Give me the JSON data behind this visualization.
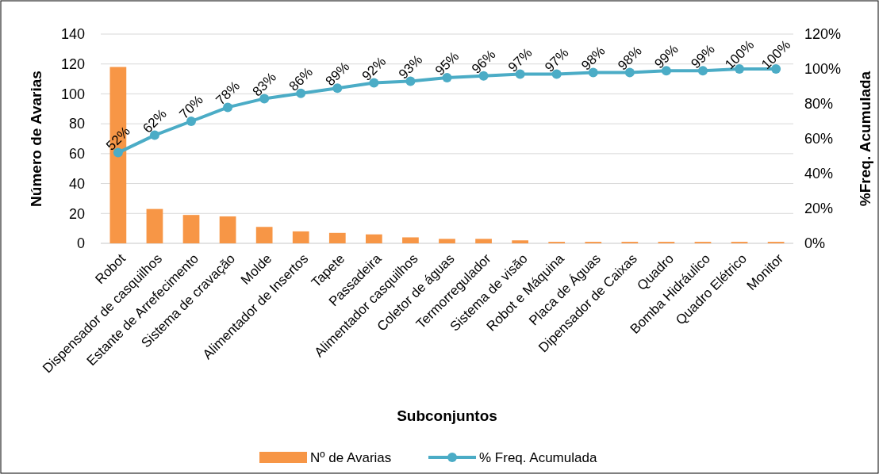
{
  "chart_data": {
    "type": "bar",
    "xlabel": "Subconjuntos",
    "ylabel": "Número de Avarias",
    "y2label": "%Freq. Acumulada",
    "categories": [
      "Robot",
      "Dispensador de casquilhos",
      "Estante de Arrefecimento",
      "Sistema de cravação",
      "Molde",
      "Alimentador de Insertos",
      "Tapete",
      "Passadeira",
      "Alimentador casquilhos",
      "Coletor de águas",
      "Termorregulador",
      "Sistema de visão",
      "Robot e Máquina",
      "Placa de Águas",
      "Dipensador de Caixas",
      "Quadro",
      "Bomba Hidráulico",
      "Quadro Elétrico",
      "Monitor"
    ],
    "series": [
      {
        "name": "Nº de Avarias",
        "type": "bar",
        "color": "#f79646",
        "values": [
          118,
          23,
          19,
          18,
          11,
          8,
          7,
          6,
          4,
          3,
          3,
          2,
          1,
          1,
          1,
          1,
          1,
          1,
          1
        ]
      },
      {
        "name": "% Freq. Acumulada",
        "type": "line",
        "axis": "y2",
        "color": "#4bacc6",
        "marker": "circle",
        "values": [
          52,
          62,
          70,
          78,
          83,
          86,
          89,
          92,
          93,
          95,
          96,
          97,
          97,
          98,
          98,
          99,
          99,
          100,
          100
        ],
        "value_labels": [
          "52%",
          "62%",
          "70%",
          "78%",
          "83%",
          "86%",
          "89%",
          "92%",
          "93%",
          "95%",
          "96%",
          "97%",
          "97%",
          "98%",
          "98%",
          "99%",
          "99%",
          "100%",
          "100%"
        ]
      }
    ],
    "ylim": [
      0,
      140
    ],
    "yticks": [
      0,
      20,
      40,
      60,
      80,
      100,
      120,
      140
    ],
    "y2lim": [
      0,
      120
    ],
    "y2ticks": [
      {
        "value": 0,
        "label": "0%"
      },
      {
        "value": 20,
        "label": "20%"
      },
      {
        "value": 40,
        "label": "40%"
      },
      {
        "value": 60,
        "label": "60%"
      },
      {
        "value": 80,
        "label": "80%"
      },
      {
        "value": 100,
        "label": "100%"
      },
      {
        "value": 120,
        "label": "120%"
      }
    ],
    "grid": "y",
    "legend": "bottom"
  }
}
